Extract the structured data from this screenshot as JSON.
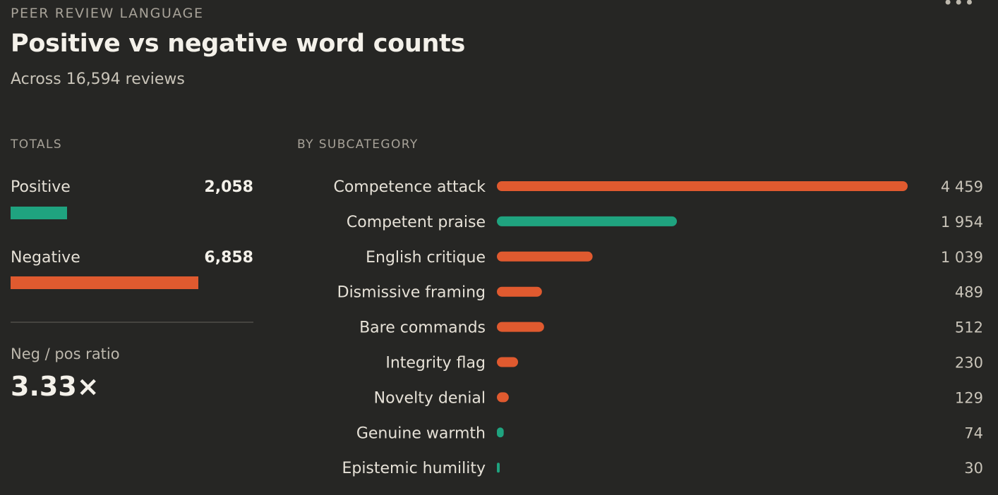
{
  "header": {
    "eyebrow": "PEER REVIEW LANGUAGE",
    "title": "Positive vs negative word counts",
    "subtitle": "Across 16,594 reviews",
    "more_icon": "more-dots-icon"
  },
  "totals": {
    "section_label": "TOTALS",
    "positive": {
      "label": "Positive",
      "value_text": "2,058",
      "value": 2058
    },
    "negative": {
      "label": "Negative",
      "value_text": "6,858",
      "value": 6858
    },
    "ratio_label": "Neg / pos ratio",
    "ratio_value": "3.33×"
  },
  "colors": {
    "positive": "#1fa37f",
    "negative": "#e05a2f"
  },
  "chart_data": {
    "type": "bar",
    "orientation": "horizontal",
    "title": "BY SUBCATEGORY",
    "categories": [
      "Competence attack",
      "Competent praise",
      "English critique",
      "Dismissive framing",
      "Bare commands",
      "Integrity flag",
      "Novelty denial",
      "Genuine warmth",
      "Epistemic humility"
    ],
    "values": [
      4459,
      1954,
      1039,
      489,
      512,
      230,
      129,
      74,
      30
    ],
    "value_labels": [
      "4 459",
      "1 954",
      "1 039",
      "489",
      "512",
      "230",
      "129",
      "74",
      "30"
    ],
    "polarity": [
      "negative",
      "positive",
      "negative",
      "negative",
      "negative",
      "negative",
      "negative",
      "positive",
      "positive"
    ],
    "xlim": [
      0,
      4459
    ],
    "grid": false
  }
}
